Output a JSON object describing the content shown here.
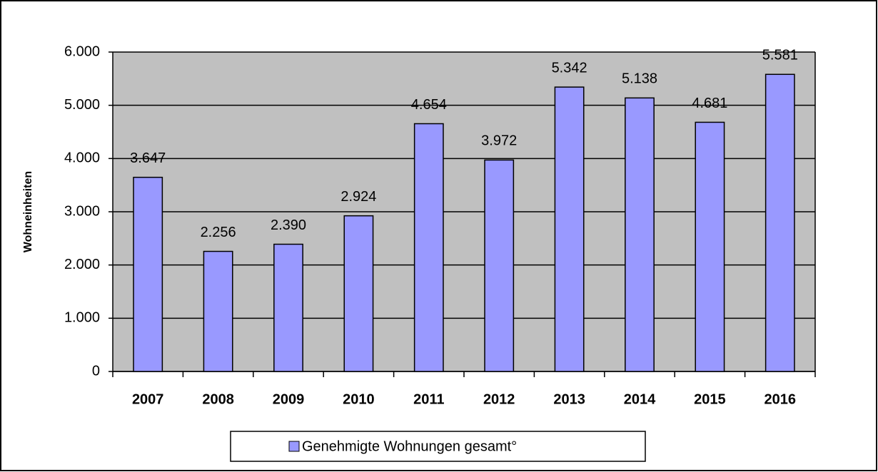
{
  "chart_data": {
    "type": "bar",
    "y_label": "Wohneinheiten",
    "categories": [
      "2007",
      "2008",
      "2009",
      "2010",
      "2011",
      "2012",
      "2013",
      "2014",
      "2015",
      "2016"
    ],
    "series": [
      {
        "name": "Genehmigte Wohnungen gesamt°",
        "color": "#9999ff",
        "values": [
          3647,
          2256,
          2390,
          2924,
          4654,
          3972,
          5342,
          5138,
          4681,
          5581
        ],
        "value_labels": [
          "3.647",
          "2.256",
          "2.390",
          "2.924",
          "4.654",
          "3.972",
          "5.342",
          "5.138",
          "4.681",
          "5.581"
        ]
      }
    ],
    "ylim": [
      0,
      6000
    ],
    "yticks": [
      0,
      {
        "value": 1000,
        "label": "1.000"
      },
      {
        "value": 2000,
        "label": "2.000"
      },
      {
        "value": 3000,
        "label": "3.000"
      },
      {
        "value": 4000,
        "label": "4.000"
      },
      {
        "value": 5000,
        "label": "5.000"
      },
      {
        "value": 6000,
        "label": "6.000"
      }
    ],
    "grid": true,
    "legend": "bottom",
    "plot_background": "#c0c0c0"
  }
}
